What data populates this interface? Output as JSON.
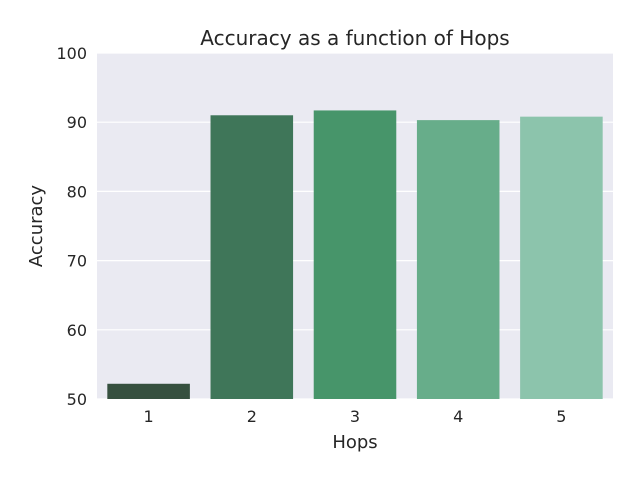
{
  "chart_data": {
    "type": "bar",
    "title": "Accuracy as a function of Hops",
    "xlabel": "Hops",
    "ylabel": "Accuracy",
    "categories": [
      "1",
      "2",
      "3",
      "4",
      "5"
    ],
    "values": [
      52.2,
      91.0,
      91.7,
      90.3,
      90.8
    ],
    "ylim": [
      50,
      100
    ],
    "yticks": [
      "50",
      "60",
      "70",
      "80",
      "90",
      "100"
    ],
    "grid": true,
    "legend": "none",
    "colors": [
      "#36503f",
      "#3f7659",
      "#47956a",
      "#67ad8a",
      "#8cc4ac"
    ],
    "background": "#eaeaf2"
  }
}
